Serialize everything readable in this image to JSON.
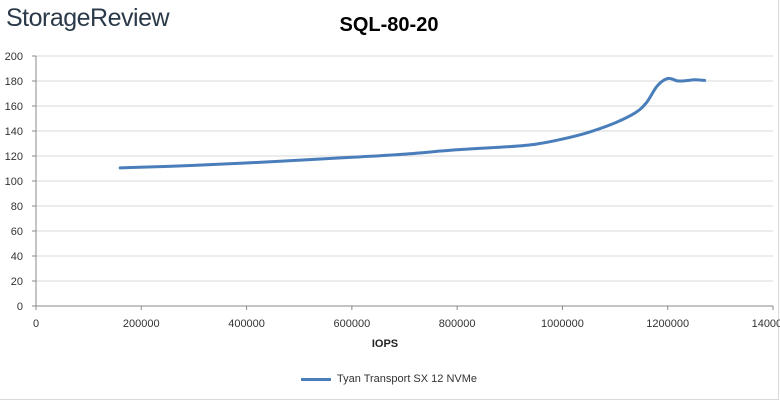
{
  "brand": {
    "text": "StorageReview"
  },
  "chart_data": {
    "type": "line",
    "title": "SQL-80-20",
    "xlabel": "IOPS",
    "ylabel": "",
    "xlim": [
      0,
      1400000
    ],
    "ylim": [
      0,
      200
    ],
    "x_ticks": [
      0,
      200000,
      400000,
      600000,
      800000,
      1000000,
      1200000,
      1400000
    ],
    "x_tick_labels": [
      "0",
      "200000",
      "400000",
      "600000",
      "800000",
      "1000000",
      "1200000",
      "1400000"
    ],
    "y_ticks": [
      0,
      20,
      40,
      60,
      80,
      100,
      120,
      140,
      160,
      180,
      200
    ],
    "y_tick_labels": [
      "0",
      "20",
      "40",
      "60",
      "80",
      "100",
      "120",
      "140",
      "160",
      "180",
      "200"
    ],
    "grid": true,
    "legend_position": "bottom",
    "series": [
      {
        "name": "Tyan Transport SX 12 NVMe",
        "color": "#4a7ebb",
        "x": [
          160000,
          300000,
          450000,
          600000,
          700000,
          800000,
          900000,
          950000,
          1000000,
          1050000,
          1100000,
          1140000,
          1160000,
          1180000,
          1200000,
          1220000,
          1240000,
          1250000,
          1270000
        ],
        "y": [
          110.5,
          112.5,
          115.5,
          119,
          121.5,
          125,
          127.5,
          129.5,
          133.5,
          139,
          146.5,
          155,
          163,
          176,
          182,
          180,
          180.5,
          181,
          180.5
        ]
      }
    ]
  }
}
